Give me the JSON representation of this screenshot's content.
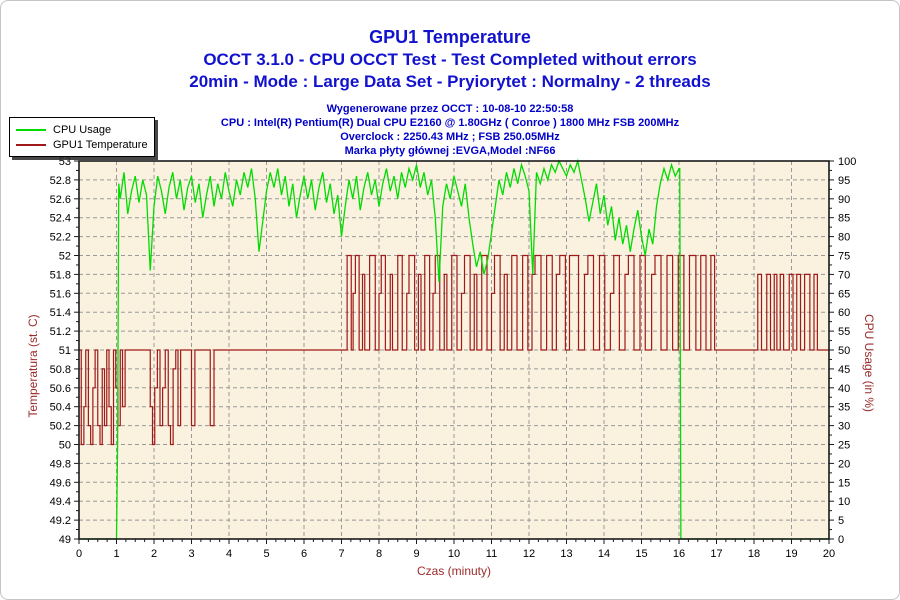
{
  "header": {
    "title": "GPU1 Temperature",
    "subtitle": "OCCT 3.1.0 - CPU OCCT Test - Test Completed without errors",
    "subtitle2": "20min - Mode : Large Data Set - Pryiorytet : Normalny - 2 threads",
    "generated": "Wygenerowane przez OCCT : 10-08-10 22:50:58",
    "cpu": "CPU : Intel(R) Pentium(R) Dual CPU E2160 @ 1.80GHz ( Conroe ) 1800 MHz FSB 200MHz",
    "overclock": "Overclock : 2250.43 MHz ; FSB 250.05MHz",
    "mainboard": "Marka płyty głównej :EVGA,Model :NF66",
    "title_color": "#1212CE",
    "info_color": "#0000C8"
  },
  "legend": {
    "items": [
      {
        "label": "CPU Usage",
        "color": "#00DC00"
      },
      {
        "label": "GPU1 Temperature",
        "color": "#A01818"
      }
    ]
  },
  "chart_data": {
    "type": "line",
    "title": "GPU1 Temperature",
    "xlabel": "Czas (minuty)",
    "ylabel_left": "Temperatura (st. C)",
    "ylabel_right": "CPU Usage (in %)",
    "x_range": [
      0,
      20
    ],
    "temp_range": [
      49,
      53
    ],
    "cpu_range": [
      0,
      100
    ],
    "grid": "dashed, horizontal every 0.2 C / 5 %, vertical every 1 min",
    "legend_position": "top-left",
    "x_ticks": [
      "0",
      "1",
      "2",
      "3",
      "4",
      "5",
      "6",
      "7",
      "8",
      "9",
      "10",
      "11",
      "12",
      "13",
      "14",
      "15",
      "16",
      "17",
      "18",
      "19",
      "20"
    ],
    "temp_ticks": [
      "49",
      "49.2",
      "49.4",
      "49.6",
      "49.8",
      "50",
      "50.2",
      "50.4",
      "50.6",
      "50.8",
      "51",
      "51.2",
      "51.4",
      "51.6",
      "51.8",
      "52",
      "52.2",
      "52.4",
      "52.6",
      "52.8",
      "53"
    ],
    "cpu_ticks": [
      "0",
      "5",
      "10",
      "15",
      "20",
      "25",
      "30",
      "35",
      "40",
      "45",
      "50",
      "55",
      "60",
      "65",
      "70",
      "75",
      "80",
      "85",
      "90",
      "95",
      "100"
    ],
    "colors": {
      "plot_bg": "#FAF2DF",
      "grid": "#999999",
      "frame": "#1a1a1a",
      "cpu_line": "#00DC00",
      "temp_line": "#A01818",
      "axis_label": "#9B2B2B",
      "tick_label": "#000000"
    },
    "series": [
      {
        "name": "GPU1 Temperature",
        "axis": "left",
        "mode": "step",
        "points": [
          [
            0,
            51
          ],
          [
            0.06,
            50
          ],
          [
            0.13,
            50.4
          ],
          [
            0.18,
            51
          ],
          [
            0.25,
            50.2
          ],
          [
            0.31,
            50
          ],
          [
            0.37,
            50.6
          ],
          [
            0.43,
            51
          ],
          [
            0.5,
            50.2
          ],
          [
            0.56,
            50
          ],
          [
            0.62,
            50.8
          ],
          [
            0.68,
            50.2
          ],
          [
            0.74,
            51
          ],
          [
            0.8,
            50.4
          ],
          [
            0.86,
            50
          ],
          [
            0.92,
            51
          ],
          [
            0.98,
            50.6
          ],
          [
            1.04,
            50.2
          ],
          [
            1.1,
            51
          ],
          [
            1.16,
            50.4
          ],
          [
            1.23,
            51
          ],
          [
            1.9,
            50.4
          ],
          [
            1.96,
            50
          ],
          [
            2.02,
            50.6
          ],
          [
            2.09,
            51
          ],
          [
            2.16,
            50.2
          ],
          [
            2.23,
            50.6
          ],
          [
            2.3,
            51
          ],
          [
            2.38,
            50.2
          ],
          [
            2.44,
            50
          ],
          [
            2.51,
            50.8
          ],
          [
            2.58,
            51
          ],
          [
            2.64,
            50.2
          ],
          [
            2.71,
            51
          ],
          [
            3.0,
            50.2
          ],
          [
            3.09,
            51
          ],
          [
            3.5,
            50.2
          ],
          [
            3.6,
            51
          ],
          [
            7.15,
            52
          ],
          [
            7.26,
            51
          ],
          [
            7.31,
            51.6
          ],
          [
            7.37,
            52
          ],
          [
            7.47,
            51
          ],
          [
            7.56,
            51.8
          ],
          [
            7.62,
            51
          ],
          [
            7.75,
            52
          ],
          [
            7.9,
            51
          ],
          [
            8.0,
            51.6
          ],
          [
            8.06,
            52
          ],
          [
            8.17,
            51
          ],
          [
            8.3,
            51.8
          ],
          [
            8.36,
            51
          ],
          [
            8.5,
            52
          ],
          [
            8.62,
            51
          ],
          [
            8.74,
            51.6
          ],
          [
            8.8,
            52
          ],
          [
            8.95,
            51
          ],
          [
            9.05,
            51.8
          ],
          [
            9.12,
            51
          ],
          [
            9.22,
            52
          ],
          [
            9.35,
            51
          ],
          [
            9.44,
            51.6
          ],
          [
            9.5,
            52
          ],
          [
            9.62,
            51
          ],
          [
            9.74,
            51.8
          ],
          [
            9.81,
            51
          ],
          [
            9.94,
            52
          ],
          [
            10.08,
            51
          ],
          [
            10.2,
            51.6
          ],
          [
            10.28,
            52
          ],
          [
            10.43,
            51
          ],
          [
            10.54,
            51.8
          ],
          [
            10.61,
            51
          ],
          [
            10.74,
            52
          ],
          [
            10.88,
            51
          ],
          [
            11.0,
            51.6
          ],
          [
            11.08,
            52
          ],
          [
            11.23,
            51
          ],
          [
            11.34,
            51.8
          ],
          [
            11.42,
            51
          ],
          [
            11.54,
            52
          ],
          [
            11.68,
            51
          ],
          [
            11.83,
            52
          ],
          [
            11.97,
            51
          ],
          [
            12.08,
            51.8
          ],
          [
            12.16,
            52
          ],
          [
            12.32,
            51
          ],
          [
            12.47,
            52
          ],
          [
            12.62,
            51
          ],
          [
            12.73,
            51.8
          ],
          [
            12.82,
            52
          ],
          [
            12.97,
            51
          ],
          [
            13.08,
            52
          ],
          [
            13.32,
            51
          ],
          [
            13.48,
            51.8
          ],
          [
            13.57,
            52
          ],
          [
            13.72,
            51
          ],
          [
            13.88,
            52
          ],
          [
            14.02,
            51
          ],
          [
            14.17,
            51.6
          ],
          [
            14.26,
            52
          ],
          [
            14.41,
            51
          ],
          [
            14.56,
            51.8
          ],
          [
            14.65,
            52
          ],
          [
            14.8,
            51
          ],
          [
            14.96,
            52
          ],
          [
            15.1,
            51
          ],
          [
            15.27,
            51.8
          ],
          [
            15.36,
            52
          ],
          [
            15.52,
            51
          ],
          [
            15.68,
            52
          ],
          [
            15.83,
            51
          ],
          [
            15.98,
            52
          ],
          [
            16.13,
            51
          ],
          [
            16.28,
            52
          ],
          [
            16.45,
            51
          ],
          [
            16.58,
            52
          ],
          [
            16.72,
            51
          ],
          [
            16.85,
            52
          ],
          [
            16.95,
            51
          ],
          [
            18.1,
            51.8
          ],
          [
            18.2,
            51
          ],
          [
            18.34,
            51.8
          ],
          [
            18.44,
            51
          ],
          [
            18.54,
            51.8
          ],
          [
            18.61,
            51
          ],
          [
            18.7,
            51.8
          ],
          [
            18.79,
            51
          ],
          [
            18.94,
            51.8
          ],
          [
            19.04,
            51
          ],
          [
            19.14,
            51.8
          ],
          [
            19.24,
            51
          ],
          [
            19.35,
            51.8
          ],
          [
            19.49,
            51
          ],
          [
            19.6,
            51.8
          ],
          [
            19.69,
            51
          ]
        ]
      },
      {
        "name": "CPU Usage",
        "axis": "right",
        "mode": "linear",
        "points": [
          [
            0,
            0
          ],
          [
            1.0,
            0
          ],
          [
            1.03,
            26
          ],
          [
            1.06,
            94
          ],
          [
            1.1,
            90
          ],
          [
            1.2,
            97
          ],
          [
            1.3,
            86
          ],
          [
            1.4,
            92
          ],
          [
            1.5,
            96
          ],
          [
            1.6,
            89
          ],
          [
            1.7,
            95
          ],
          [
            1.8,
            91
          ],
          [
            1.9,
            71
          ],
          [
            2.0,
            88
          ],
          [
            2.1,
            96
          ],
          [
            2.2,
            92
          ],
          [
            2.3,
            86
          ],
          [
            2.4,
            93
          ],
          [
            2.5,
            97
          ],
          [
            2.6,
            90
          ],
          [
            2.7,
            95
          ],
          [
            2.8,
            87
          ],
          [
            2.9,
            93
          ],
          [
            3.0,
            96
          ],
          [
            3.1,
            89
          ],
          [
            3.2,
            94
          ],
          [
            3.3,
            85
          ],
          [
            3.4,
            91
          ],
          [
            3.5,
            96
          ],
          [
            3.6,
            88
          ],
          [
            3.7,
            94
          ],
          [
            3.8,
            90
          ],
          [
            3.9,
            97
          ],
          [
            4.0,
            92
          ],
          [
            4.1,
            88
          ],
          [
            4.2,
            95
          ],
          [
            4.3,
            91
          ],
          [
            4.4,
            97
          ],
          [
            4.5,
            93
          ],
          [
            4.6,
            98
          ],
          [
            4.7,
            90
          ],
          [
            4.8,
            76
          ],
          [
            4.9,
            84
          ],
          [
            5.0,
            92
          ],
          [
            5.1,
            97
          ],
          [
            5.2,
            93
          ],
          [
            5.3,
            98
          ],
          [
            5.4,
            91
          ],
          [
            5.5,
            96
          ],
          [
            5.6,
            88
          ],
          [
            5.7,
            94
          ],
          [
            5.8,
            85
          ],
          [
            5.9,
            91
          ],
          [
            6.0,
            96
          ],
          [
            6.1,
            90
          ],
          [
            6.2,
            95
          ],
          [
            6.3,
            87
          ],
          [
            6.4,
            93
          ],
          [
            6.5,
            97
          ],
          [
            6.6,
            89
          ],
          [
            6.7,
            94
          ],
          [
            6.8,
            86
          ],
          [
            6.9,
            91
          ],
          [
            7.0,
            80
          ],
          [
            7.1,
            88
          ],
          [
            7.2,
            95
          ],
          [
            7.3,
            90
          ],
          [
            7.4,
            96
          ],
          [
            7.5,
            87
          ],
          [
            7.6,
            93
          ],
          [
            7.7,
            97
          ],
          [
            7.8,
            91
          ],
          [
            7.9,
            95
          ],
          [
            8.0,
            88
          ],
          [
            8.1,
            94
          ],
          [
            8.2,
            98
          ],
          [
            8.3,
            92
          ],
          [
            8.4,
            96
          ],
          [
            8.5,
            90
          ],
          [
            8.6,
            97
          ],
          [
            8.7,
            93
          ],
          [
            8.8,
            98
          ],
          [
            8.9,
            95
          ],
          [
            9.0,
            99
          ],
          [
            9.1,
            93
          ],
          [
            9.2,
            97
          ],
          [
            9.3,
            91
          ],
          [
            9.4,
            95
          ],
          [
            9.5,
            85
          ],
          [
            9.6,
            68
          ],
          [
            9.7,
            88
          ],
          [
            9.8,
            94
          ],
          [
            9.9,
            90
          ],
          [
            10.0,
            96
          ],
          [
            10.1,
            92
          ],
          [
            10.2,
            88
          ],
          [
            10.3,
            94
          ],
          [
            10.4,
            85
          ],
          [
            10.5,
            78
          ],
          [
            10.6,
            72
          ],
          [
            10.7,
            76
          ],
          [
            10.8,
            70
          ],
          [
            10.9,
            74
          ],
          [
            11.0,
            81
          ],
          [
            11.1,
            88
          ],
          [
            11.2,
            95
          ],
          [
            11.3,
            91
          ],
          [
            11.4,
            97
          ],
          [
            11.5,
            93
          ],
          [
            11.6,
            98
          ],
          [
            11.7,
            94
          ],
          [
            11.8,
            99
          ],
          [
            11.9,
            96
          ],
          [
            12.0,
            92
          ],
          [
            12.1,
            70
          ],
          [
            12.2,
            97
          ],
          [
            12.3,
            94
          ],
          [
            12.4,
            98
          ],
          [
            12.5,
            95
          ],
          [
            12.6,
            99
          ],
          [
            12.7,
            97
          ],
          [
            12.8,
            100
          ],
          [
            12.9,
            98
          ],
          [
            13.0,
            96
          ],
          [
            13.1,
            99
          ],
          [
            13.2,
            97
          ],
          [
            13.3,
            100
          ],
          [
            13.4,
            95
          ],
          [
            13.5,
            90
          ],
          [
            13.6,
            84
          ],
          [
            13.7,
            89
          ],
          [
            13.8,
            94
          ],
          [
            13.9,
            86
          ],
          [
            14.0,
            91
          ],
          [
            14.1,
            83
          ],
          [
            14.2,
            88
          ],
          [
            14.3,
            79
          ],
          [
            14.4,
            85
          ],
          [
            14.5,
            78
          ],
          [
            14.6,
            83
          ],
          [
            14.7,
            76
          ],
          [
            14.8,
            82
          ],
          [
            14.9,
            87
          ],
          [
            15.0,
            80
          ],
          [
            15.1,
            75
          ],
          [
            15.2,
            82
          ],
          [
            15.3,
            78
          ],
          [
            15.4,
            88
          ],
          [
            15.5,
            94
          ],
          [
            15.6,
            98
          ],
          [
            15.7,
            95
          ],
          [
            15.8,
            99
          ],
          [
            15.9,
            96
          ],
          [
            16.0,
            98
          ],
          [
            16.02,
            98
          ],
          [
            16.05,
            0
          ],
          [
            20,
            0
          ]
        ]
      }
    ]
  }
}
